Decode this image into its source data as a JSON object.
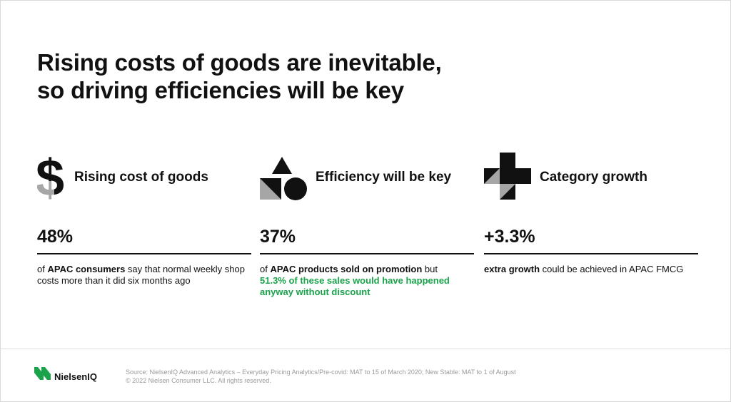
{
  "title_line1": "Rising costs of goods are inevitable,",
  "title_line2": "so driving efficiencies will be key",
  "columns": [
    {
      "icon": "dollar-icon",
      "heading": "Rising cost of goods",
      "stat": "48%",
      "desc_prefix": "of ",
      "desc_bold": "APAC consumers",
      "desc_rest": " say that normal weekly shop costs more than it did six months ago"
    },
    {
      "icon": "shapes-icon",
      "heading": "Efficiency will be key",
      "stat": "37%",
      "desc_prefix": "of ",
      "desc_bold": "APAC products sold on promotion",
      "desc_rest": " but",
      "desc_green": "51.3% of these sales would have happened anyway without discount"
    },
    {
      "icon": "plus-icon",
      "heading": "Category growth",
      "stat": "+3.3%",
      "desc_bold": "extra growth",
      "desc_rest": " could be achieved in APAC FMCG"
    }
  ],
  "footer": {
    "logo_text": "NielsenIQ",
    "source_line1": "Source: NielsenIQ Advanced Analytics – Everyday Pricing Analytics/Pre-covid: MAT to 15 of March 2020; New Stable: MAT to 1 of August",
    "source_line2": "© 2022 Nielsen Consumer LLC. All rights reserved."
  },
  "colors": {
    "accent_green": "#1aa34a",
    "gray_shape": "#a6a6a6",
    "text": "#111111"
  }
}
